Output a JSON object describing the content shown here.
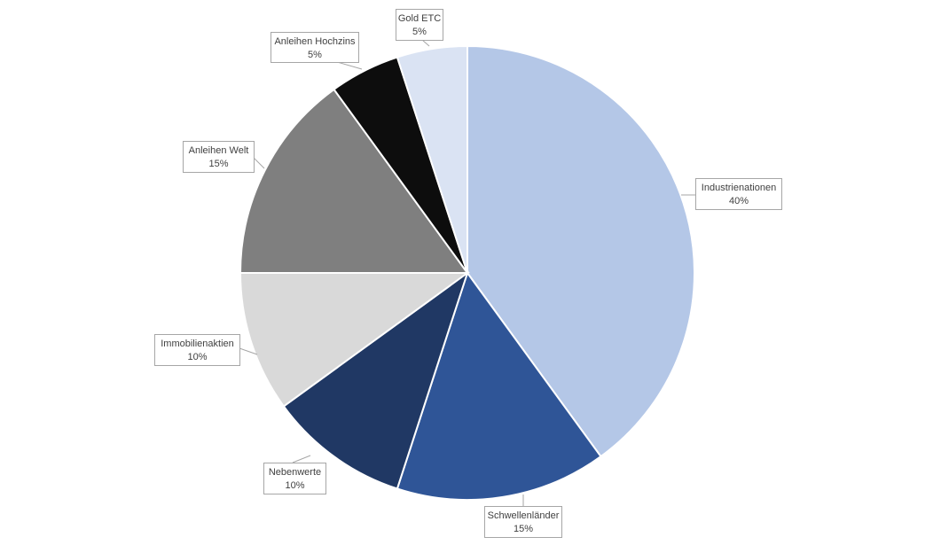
{
  "chart_data": {
    "type": "pie",
    "title": "",
    "start": "12 o'clock",
    "direction": "clockwise",
    "slices": [
      {
        "label": "Industrienationen",
        "value": 40,
        "value_label": "40%",
        "color": "#b4c7e7"
      },
      {
        "label": "Schwellenländer",
        "value": 15,
        "value_label": "15%",
        "color": "#2f5597"
      },
      {
        "label": "Nebenwerte",
        "value": 10,
        "value_label": "10%",
        "color": "#203864"
      },
      {
        "label": "Immobilienaktien",
        "value": 10,
        "value_label": "10%",
        "color": "#d9d9d9"
      },
      {
        "label": "Anleihen Welt",
        "value": 15,
        "value_label": "15%",
        "color": "#7f7f7f"
      },
      {
        "label": "Anleihen Hochzins",
        "value": 5,
        "value_label": "5%",
        "color": "#0d0d0d"
      },
      {
        "label": "Gold ETC",
        "value": 5,
        "value_label": "5%",
        "color": "#dae3f3"
      }
    ]
  }
}
